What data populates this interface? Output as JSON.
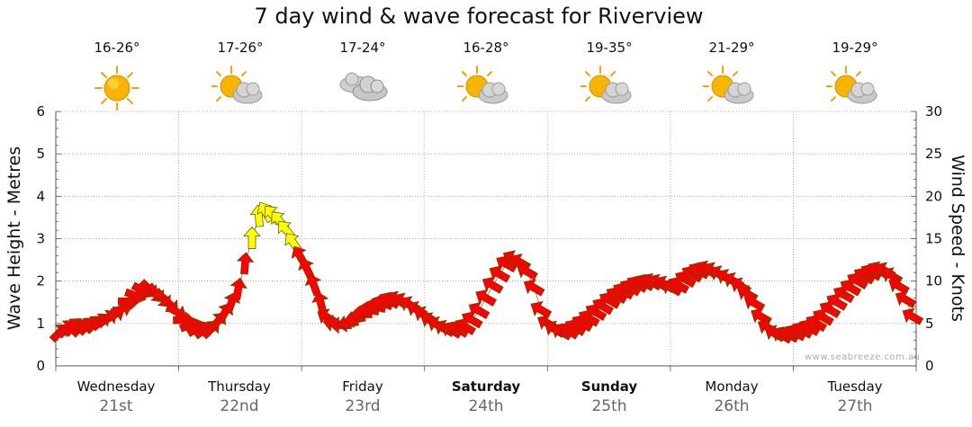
{
  "title": "7 day wind & wave forecast for Riverview",
  "watermark": "www.seabreeze.com.au",
  "days": [
    {
      "day": "Wednesday",
      "date": "21st",
      "temp": "16-26°",
      "icon": "sun-icon",
      "bold": false
    },
    {
      "day": "Thursday",
      "date": "22nd",
      "temp": "17-26°",
      "icon": "sun-cloud-icon",
      "bold": false
    },
    {
      "day": "Friday",
      "date": "23rd",
      "temp": "17-24°",
      "icon": "cloud-icon",
      "bold": false
    },
    {
      "day": "Saturday",
      "date": "24th",
      "temp": "16-28°",
      "icon": "sun-cloud-icon",
      "bold": true
    },
    {
      "day": "Sunday",
      "date": "25th",
      "temp": "19-35°",
      "icon": "sun-cloud-icon",
      "bold": true
    },
    {
      "day": "Monday",
      "date": "26th",
      "temp": "21-29°",
      "icon": "sun-cloud-icon",
      "bold": false
    },
    {
      "day": "Tuesday",
      "date": "27th",
      "temp": "19-29°",
      "icon": "sun-cloud-icon",
      "bold": false
    }
  ],
  "chart_data": {
    "type": "line",
    "title": "7 day wind & wave forecast for Riverview",
    "ylabel_left": "Wave Height - Metres",
    "ylabel_right": "Wind Speed - Knots",
    "ylim_left": [
      0,
      6
    ],
    "ylim_right": [
      0,
      30
    ],
    "yticks_left": [
      "0",
      "1",
      "2",
      "3",
      "4",
      "5",
      "6"
    ],
    "yticks_right": [
      "0",
      "5",
      "10",
      "15",
      "20",
      "25",
      "30"
    ],
    "grid": true,
    "colors": {
      "calm": "#ff0000",
      "strong": "#ffff00",
      "outline": "#5a4a00",
      "grid": "#9a9a9a"
    },
    "wind_knots": [
      3.9,
      4.4,
      4.6,
      4.5,
      4.7,
      4.9,
      5.2,
      5.6,
      6.0,
      6.7,
      7.6,
      8.3,
      8.9,
      9.1,
      8.6,
      8.0,
      7.3,
      6.4,
      5.4,
      4.8,
      4.4,
      4.2,
      4.3,
      5.2,
      6.2,
      7.4,
      9.0,
      12.0,
      15.0,
      17.6,
      18.1,
      17.8,
      17.1,
      16.0,
      14.5,
      12.9,
      11.4,
      9.5,
      7.4,
      5.7,
      5.0,
      4.8,
      5.0,
      5.5,
      6.1,
      6.6,
      7.0,
      7.4,
      7.7,
      7.8,
      7.6,
      7.2,
      6.6,
      6.0,
      5.3,
      4.8,
      4.4,
      4.2,
      4.3,
      4.6,
      5.4,
      6.5,
      8.0,
      9.5,
      10.8,
      12.0,
      12.6,
      12.2,
      11.1,
      9.2,
      6.6,
      5.0,
      4.3,
      4.0,
      4.1,
      4.5,
      5.0,
      5.6,
      6.3,
      7.0,
      7.7,
      8.3,
      8.8,
      9.2,
      9.6,
      9.8,
      9.9,
      9.8,
      9.6,
      9.2,
      9.5,
      10.2,
      10.8,
      11.2,
      11.4,
      11.2,
      10.8,
      10.4,
      10.0,
      9.4,
      8.5,
      7.4,
      5.8,
      4.5,
      3.8,
      3.6,
      3.7,
      3.9,
      4.2,
      4.5,
      5.0,
      5.7,
      6.6,
      7.5,
      8.4,
      9.2,
      10.0,
      10.6,
      11.0,
      11.3,
      11.2,
      10.6,
      9.4,
      7.8,
      5.8
    ],
    "wind_direction_deg": [
      45,
      45,
      45,
      45,
      45,
      45,
      50,
      55,
      60,
      70,
      90,
      110,
      120,
      135,
      140,
      140,
      135,
      120,
      90,
      70,
      60,
      55,
      45,
      40,
      30,
      20,
      10,
      5,
      0,
      355,
      330,
      320,
      320,
      320,
      325,
      330,
      335,
      340,
      345,
      300,
      280,
      270,
      260,
      260,
      270,
      280,
      285,
      290,
      300,
      300,
      300,
      300,
      300,
      300,
      300,
      300,
      300,
      300,
      300,
      300,
      300,
      300,
      300,
      300,
      300,
      300,
      300,
      300,
      300,
      300,
      300,
      300,
      300,
      300,
      300,
      300,
      300,
      300,
      300,
      300,
      300,
      300,
      300,
      300,
      300,
      300,
      300,
      300,
      300,
      300,
      300,
      300,
      300,
      300,
      300,
      300,
      300,
      300,
      300,
      300,
      300,
      300,
      300,
      300,
      300,
      300,
      300,
      300,
      300,
      300,
      300,
      300,
      300,
      300,
      300,
      300,
      300,
      300,
      300,
      300,
      300,
      300,
      300,
      300,
      300
    ]
  }
}
